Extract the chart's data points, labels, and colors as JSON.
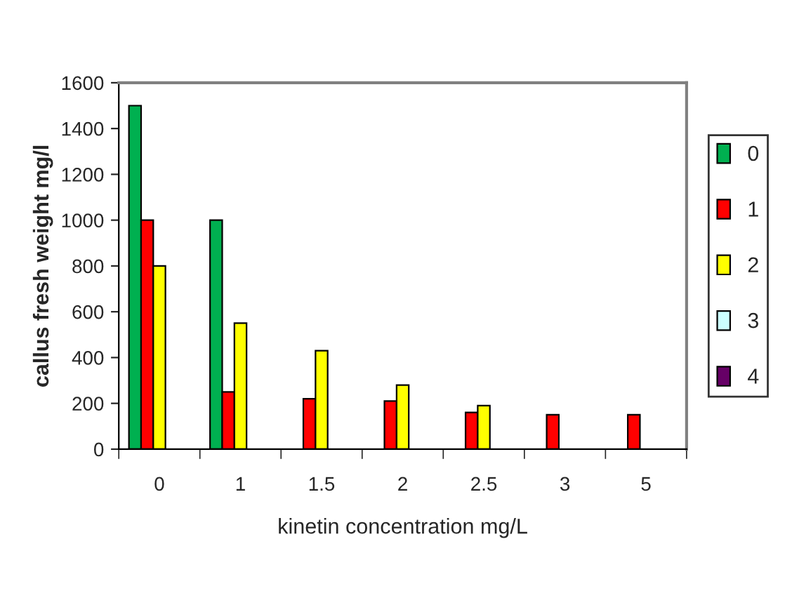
{
  "chart_data": {
    "type": "bar",
    "xlabel": "kinetin concentration mg/L",
    "ylabel": "callus fresh weight mg/l",
    "categories": [
      "0",
      "1",
      "1.5",
      "2",
      "2.5",
      "3",
      "5"
    ],
    "series": [
      {
        "name": "0",
        "color": "#00b050",
        "values": [
          1500,
          1000,
          null,
          null,
          null,
          null,
          null
        ]
      },
      {
        "name": "1",
        "color": "#ff0000",
        "values": [
          1000,
          250,
          220,
          210,
          160,
          150,
          150
        ]
      },
      {
        "name": "2",
        "color": "#ffff00",
        "values": [
          800,
          550,
          430,
          280,
          190,
          null,
          null
        ]
      },
      {
        "name": "3",
        "color": "#ccffff",
        "values": [
          null,
          null,
          null,
          null,
          null,
          null,
          null
        ]
      },
      {
        "name": "4",
        "color": "#660066",
        "values": [
          null,
          null,
          null,
          null,
          null,
          null,
          null
        ]
      }
    ],
    "ylim": [
      0,
      1600
    ],
    "yticks": [
      0,
      200,
      400,
      600,
      800,
      1000,
      1200,
      1400,
      1600
    ],
    "grid": false,
    "legend": "right"
  }
}
